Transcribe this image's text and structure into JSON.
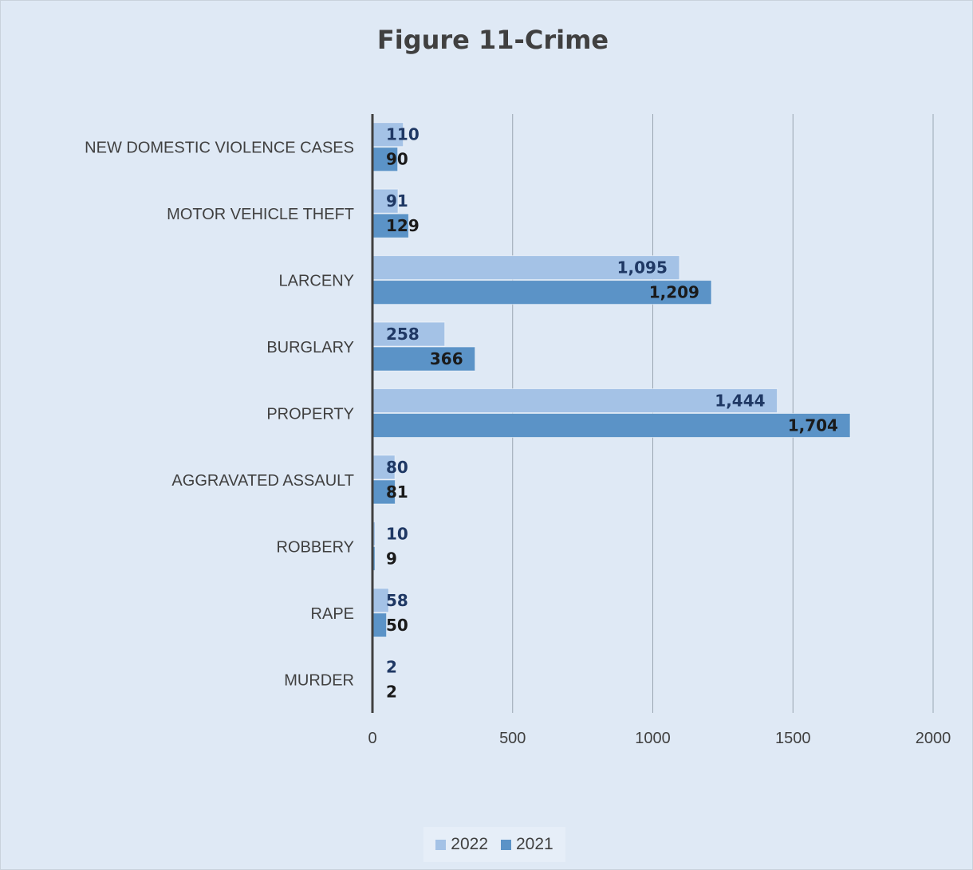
{
  "chart_data": {
    "type": "bar",
    "orientation": "horizontal",
    "title": "Figure 11-Crime",
    "categories": [
      "NEW DOMESTIC VIOLENCE CASES",
      "MOTOR VEHICLE THEFT",
      "LARCENY",
      "BURGLARY",
      "PROPERTY",
      "AGGRAVATED ASSAULT",
      "ROBBERY",
      "RAPE",
      "MURDER"
    ],
    "series": [
      {
        "name": "2022",
        "values": [
          110,
          91,
          1095,
          258,
          1444,
          80,
          10,
          58,
          2
        ],
        "labels": [
          "110",
          "91",
          "1,095",
          "258",
          "1,444",
          "80",
          "10",
          "58",
          "2"
        ],
        "color": "#a4c2e6",
        "label_color": "#1f3864"
      },
      {
        "name": "2021",
        "values": [
          90,
          129,
          1209,
          366,
          1704,
          81,
          9,
          50,
          2
        ],
        "labels": [
          "90",
          "129",
          "1,209",
          "366",
          "1,704",
          "81",
          "9",
          "50",
          "2"
        ],
        "color": "#5b93c7",
        "label_color": "#1a1a1a"
      }
    ],
    "xlim": [
      0,
      2000
    ],
    "xticks": [
      "0",
      "500",
      "1000",
      "1500",
      "2000"
    ],
    "grid": true,
    "legend_position": "bottom"
  }
}
